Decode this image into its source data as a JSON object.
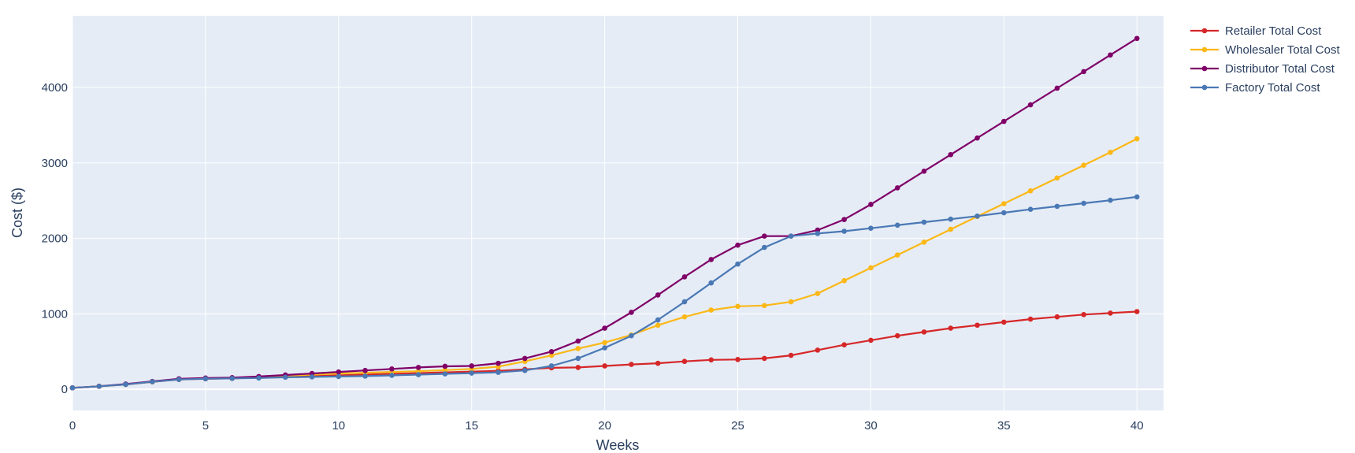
{
  "chart_data": {
    "type": "line",
    "title": "",
    "xlabel": "Weeks",
    "ylabel": "Cost ($)",
    "xlim": [
      0,
      41
    ],
    "ylim": [
      -280,
      4950
    ],
    "x_ticks": [
      0,
      5,
      10,
      15,
      20,
      25,
      30,
      35,
      40
    ],
    "y_ticks": [
      0,
      1000,
      2000,
      3000,
      4000
    ],
    "grid": true,
    "legend_position": "top-right",
    "x": [
      0,
      1,
      2,
      3,
      4,
      5,
      6,
      7,
      8,
      9,
      10,
      11,
      12,
      13,
      14,
      15,
      16,
      17,
      18,
      19,
      20,
      21,
      22,
      23,
      24,
      25,
      26,
      27,
      28,
      29,
      30,
      31,
      32,
      33,
      34,
      35,
      36,
      37,
      38,
      39,
      40
    ],
    "series": [
      {
        "name": "Retailer Total Cost",
        "color": "#d62728",
        "values": [
          20,
          40,
          65,
          100,
          130,
          140,
          145,
          155,
          165,
          175,
          185,
          195,
          205,
          215,
          225,
          235,
          245,
          265,
          285,
          290,
          310,
          330,
          345,
          370,
          390,
          395,
          410,
          450,
          520,
          590,
          650,
          710,
          760,
          810,
          850,
          890,
          930,
          960,
          990,
          1010,
          1030
        ]
      },
      {
        "name": "Wholesaler Total Cost",
        "color": "#fbb817",
        "values": [
          20,
          40,
          65,
          100,
          135,
          145,
          150,
          165,
          180,
          195,
          210,
          220,
          230,
          240,
          255,
          270,
          300,
          370,
          450,
          540,
          620,
          720,
          850,
          960,
          1050,
          1100,
          1110,
          1160,
          1270,
          1440,
          1610,
          1780,
          1950,
          2120,
          2290,
          2460,
          2630,
          2800,
          2970,
          3140,
          3320
        ]
      },
      {
        "name": "Distributor Total Cost",
        "color": "#800068",
        "values": [
          20,
          40,
          70,
          105,
          140,
          150,
          155,
          170,
          190,
          210,
          230,
          250,
          270,
          290,
          305,
          310,
          345,
          410,
          500,
          640,
          810,
          1020,
          1250,
          1490,
          1720,
          1910,
          2030,
          2030,
          2110,
          2250,
          2450,
          2670,
          2890,
          3110,
          3330,
          3550,
          3770,
          3990,
          4210,
          4430,
          4650
        ]
      },
      {
        "name": "Factory Total Cost",
        "color": "#4a78b4",
        "values": [
          20,
          40,
          65,
          100,
          130,
          140,
          145,
          150,
          160,
          165,
          170,
          175,
          185,
          195,
          205,
          215,
          225,
          250,
          310,
          410,
          550,
          710,
          920,
          1160,
          1410,
          1660,
          1880,
          2030,
          2065,
          2095,
          2135,
          2175,
          2215,
          2255,
          2295,
          2340,
          2385,
          2425,
          2465,
          2505,
          2550
        ]
      }
    ]
  }
}
